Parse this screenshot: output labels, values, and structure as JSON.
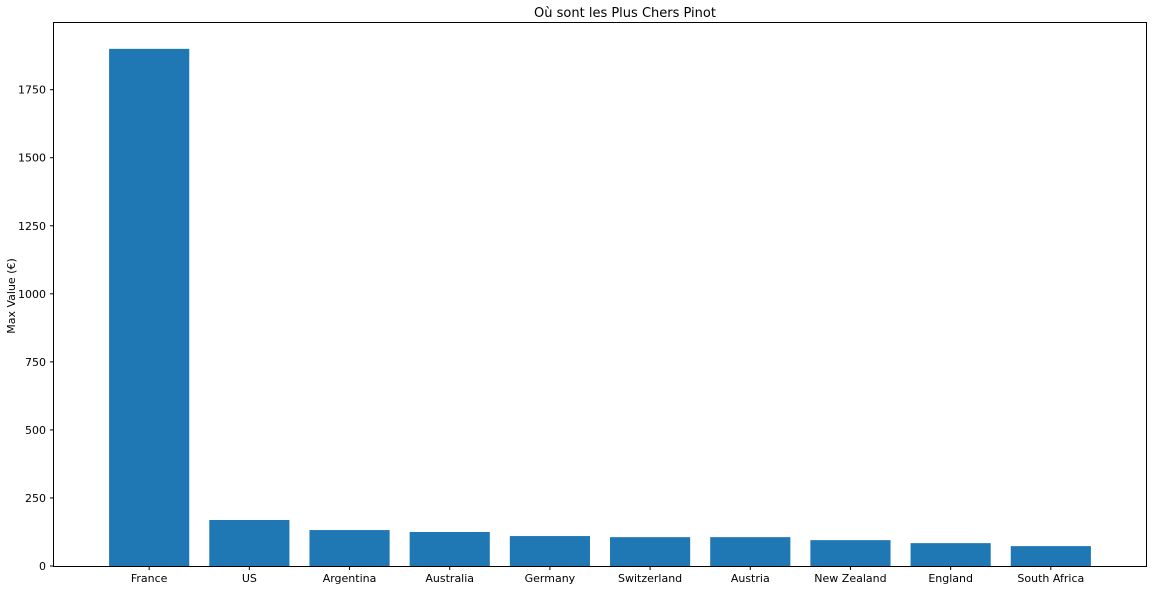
{
  "chart_data": {
    "type": "bar",
    "title": "Où sont les Plus Chers Pinot",
    "xlabel": "",
    "ylabel": "Max Value (€)",
    "categories": [
      "France",
      "US",
      "Argentina",
      "Australia",
      "Germany",
      "Switzerland",
      "Austria",
      "New Zealand",
      "England",
      "South Africa"
    ],
    "values": [
      1900,
      169,
      132,
      125,
      110,
      106,
      106,
      95,
      84,
      73
    ],
    "yticks": [
      0,
      250,
      500,
      750,
      1000,
      1250,
      1500,
      1750
    ],
    "ylim": [
      0,
      1995
    ],
    "grid": false,
    "legend": "none",
    "bar_color": "#1f77b4"
  }
}
